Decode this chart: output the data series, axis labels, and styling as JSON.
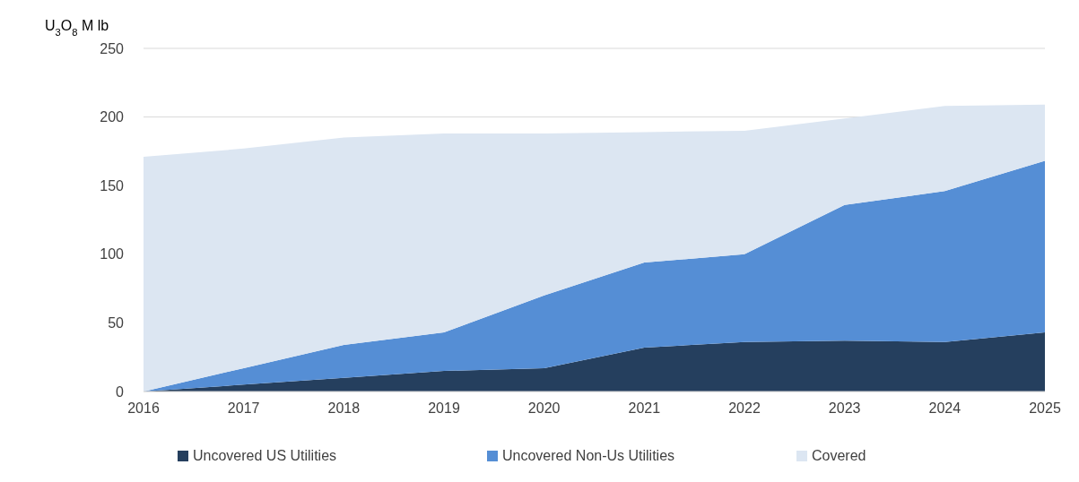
{
  "chart_data": {
    "type": "area",
    "stacked": true,
    "ylabel": "U$_{3}$O$_{8}$ M lb",
    "x": [
      2016,
      2017,
      2018,
      2019,
      2020,
      2021,
      2022,
      2023,
      2024,
      2025
    ],
    "xlim": [
      2016,
      2025
    ],
    "xticks": [
      2016,
      2017,
      2018,
      2019,
      2020,
      2021,
      2022,
      2023,
      2024,
      2025
    ],
    "ylim": [
      0,
      250
    ],
    "yticks": [
      0,
      50,
      100,
      150,
      200,
      250
    ],
    "grid": "y",
    "legend": "bottom",
    "series": [
      {
        "name": "Uncovered US Utilities",
        "color": "#253f5e",
        "values": [
          0,
          5,
          10,
          15,
          17,
          32,
          36,
          37,
          36,
          43
        ]
      },
      {
        "name": "Uncovered Non-Us Utilities",
        "color": "#558ed5",
        "values": [
          0,
          12,
          24,
          28,
          53,
          62,
          64,
          99,
          110,
          125
        ]
      },
      {
        "name": "Covered",
        "color": "#dce6f2",
        "values": [
          171,
          160,
          151,
          145,
          118,
          95,
          90,
          63,
          62,
          41
        ]
      }
    ]
  }
}
